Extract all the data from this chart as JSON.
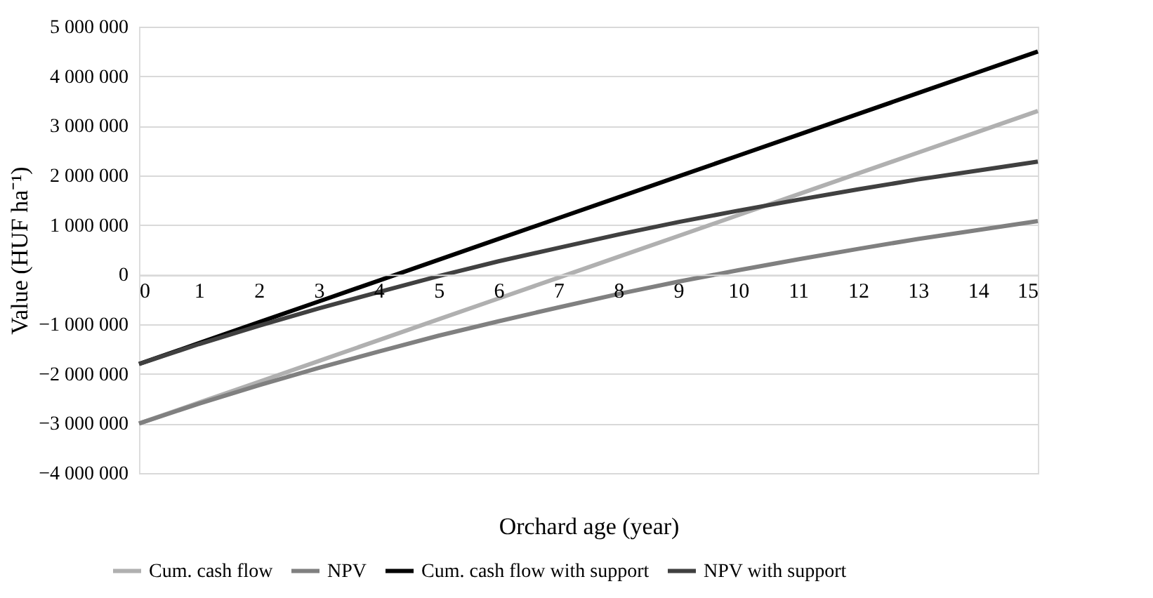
{
  "chart_data": {
    "type": "line",
    "xlabel": "Orchard age (year)",
    "ylabel": "Value (HUF ha⁻¹)",
    "x": [
      0,
      1,
      2,
      3,
      4,
      5,
      6,
      7,
      8,
      9,
      10,
      11,
      12,
      13,
      14,
      15
    ],
    "series": [
      {
        "name": "Cum. cash flow",
        "color": "#b0b0b0",
        "values": [
          -3000000,
          -2580000,
          -2160000,
          -1740000,
          -1320000,
          -900000,
          -480000,
          -60000,
          360000,
          780000,
          1200000,
          1620000,
          2040000,
          2460000,
          2880000,
          3300000
        ]
      },
      {
        "name": "NPV",
        "color": "#808080",
        "values": [
          -3000000,
          -2600000,
          -2230000,
          -1880000,
          -1550000,
          -1230000,
          -940000,
          -660000,
          -390000,
          -140000,
          90000,
          310000,
          520000,
          720000,
          900000,
          1080000
        ]
      },
      {
        "name": "Cum. cash flow with support",
        "color": "#000000",
        "values": [
          -1800000,
          -1380000,
          -960000,
          -540000,
          -120000,
          300000,
          720000,
          1140000,
          1560000,
          1980000,
          2400000,
          2820000,
          3240000,
          3660000,
          4080000,
          4500000
        ]
      },
      {
        "name": "NPV with support",
        "color": "#404040",
        "values": [
          -1800000,
          -1400000,
          -1030000,
          -680000,
          -350000,
          -30000,
          270000,
          540000,
          810000,
          1060000,
          1290000,
          1510000,
          1720000,
          1920000,
          2100000,
          2280000
        ]
      }
    ],
    "xlim": [
      0,
      15
    ],
    "xticks": [
      0,
      1,
      2,
      3,
      4,
      5,
      6,
      7,
      8,
      9,
      10,
      11,
      12,
      13,
      14,
      15
    ],
    "ylim": [
      -4000000,
      5000000
    ],
    "yticks": [
      -4000000,
      -3000000,
      -2000000,
      -1000000,
      0,
      1000000,
      2000000,
      3000000,
      4000000,
      5000000
    ],
    "grid": "y",
    "legend": "bottom",
    "marker": "none",
    "line_style": "solid"
  }
}
